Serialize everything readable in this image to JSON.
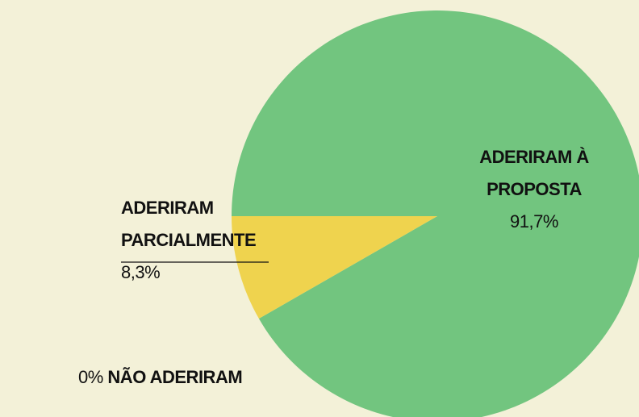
{
  "chart_data": {
    "type": "pie",
    "categories": [
      "ADERIRAM À PROPOSTA",
      "ADERIRAM PARCIALMENTE",
      "NÃO ADERIRAM"
    ],
    "values": [
      91.7,
      8.3,
      0
    ],
    "value_labels": [
      "91,7%",
      "8,3%",
      "0%"
    ],
    "colors": [
      "#72c57f",
      "#efd34e",
      "#d9534f"
    ],
    "start_angle": 180
  }
}
